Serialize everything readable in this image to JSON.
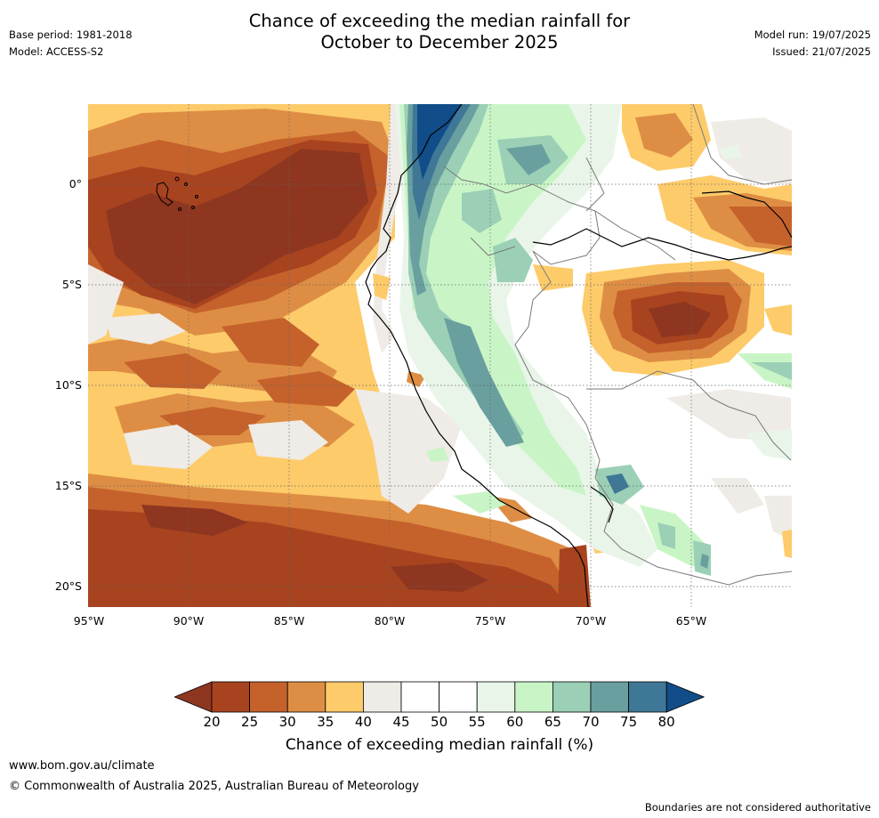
{
  "title_line1": "Chance of exceeding the median rainfall for",
  "title_line2": "October to December 2025",
  "base_period": "Base period: 1981-2018",
  "model": "Model: ACCESS-S2",
  "model_run": "Model run: 19/07/2025",
  "issued": "Issued: 21/07/2025",
  "lat_labels": [
    "0°",
    "5°S",
    "10°S",
    "15°S",
    "20°S"
  ],
  "lon_labels": [
    "95°W",
    "90°W",
    "85°W",
    "80°W",
    "75°W",
    "70°W",
    "65°W"
  ],
  "colorbar": {
    "ticks": [
      "20",
      "25",
      "30",
      "35",
      "40",
      "45",
      "50",
      "55",
      "60",
      "65",
      "70",
      "75",
      "80"
    ],
    "colors": [
      "#8e3620",
      "#a8431f",
      "#c5622c",
      "#de8e44",
      "#fdcb6a",
      "#efebe6",
      "#ffffff",
      "#ffffff",
      "#e9f5e9",
      "#c9f5c6",
      "#9bd0b6",
      "#6a9f9f",
      "#3f7796",
      "#114d88"
    ],
    "title": "Chance of exceeding median rainfall (%)"
  },
  "footer": {
    "url": "www.bom.gov.au/climate",
    "copyright": "© Commonwealth of Australia 2025, Australian Bureau of Meteorology",
    "note": "Boundaries are not considered authoritative"
  }
}
